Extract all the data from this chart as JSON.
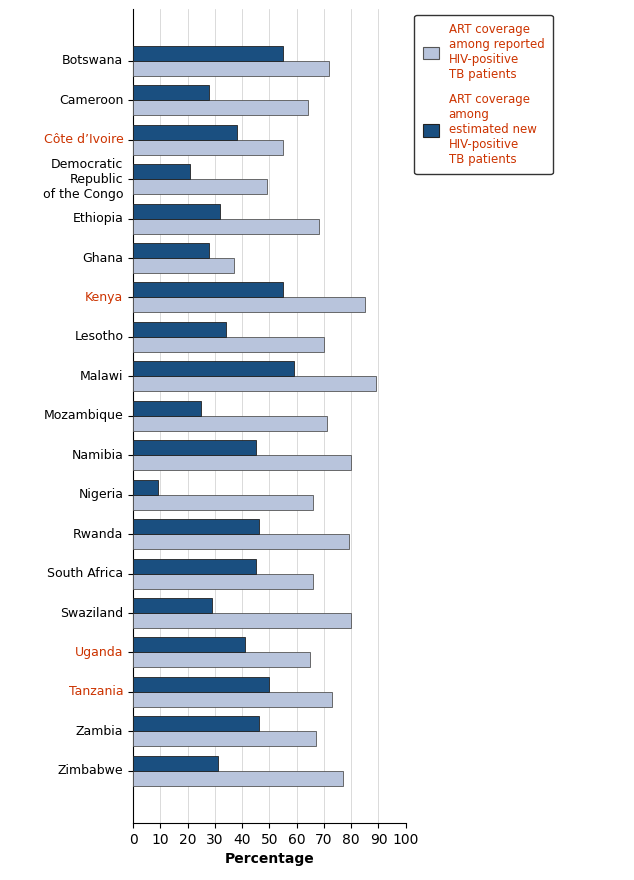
{
  "countries": [
    "Botswana",
    "Cameroon",
    "Côte d’Ivoire",
    "Democratic\nRepublic\nof the Congo",
    "Ethiopia",
    "Ghana",
    "Kenya",
    "Lesotho",
    "Malawi",
    "Mozambique",
    "Namibia",
    "Nigeria",
    "Rwanda",
    "South Africa",
    "Swaziland",
    "Uganda",
    "Tanzania",
    "Zambia",
    "Zimbabwe"
  ],
  "reported": [
    72,
    64,
    55,
    49,
    68,
    37,
    85,
    70,
    89,
    71,
    80,
    66,
    79,
    66,
    80,
    65,
    73,
    67,
    77
  ],
  "estimated": [
    55,
    28,
    38,
    21,
    32,
    28,
    55,
    34,
    59,
    25,
    45,
    9,
    46,
    45,
    29,
    41,
    50,
    46,
    31
  ],
  "color_reported": "#b8c4dc",
  "color_estimated": "#1a4f80",
  "xlabel": "Percentage",
  "xlim": [
    0,
    100
  ],
  "xticks": [
    0,
    10,
    20,
    30,
    40,
    50,
    60,
    70,
    80,
    90,
    100
  ],
  "legend_reported": "ART coverage\namong reported\nHIV-positive\nTB patients",
  "legend_estimated": "ART coverage\namong\nestimated new\nHIV-positive\nTB patients",
  "bar_height": 0.38,
  "figure_bg": "#ffffff",
  "axes_bg": "#ffffff",
  "label_color_default": "#000000",
  "label_color_red": "#cc3300",
  "red_labels": [
    "Côte d’Ivoire",
    "Kenya",
    "Uganda",
    "Tanzania"
  ],
  "legend_text_color": "#cc3300",
  "tick_fontsize": 9,
  "xlabel_fontsize": 10
}
